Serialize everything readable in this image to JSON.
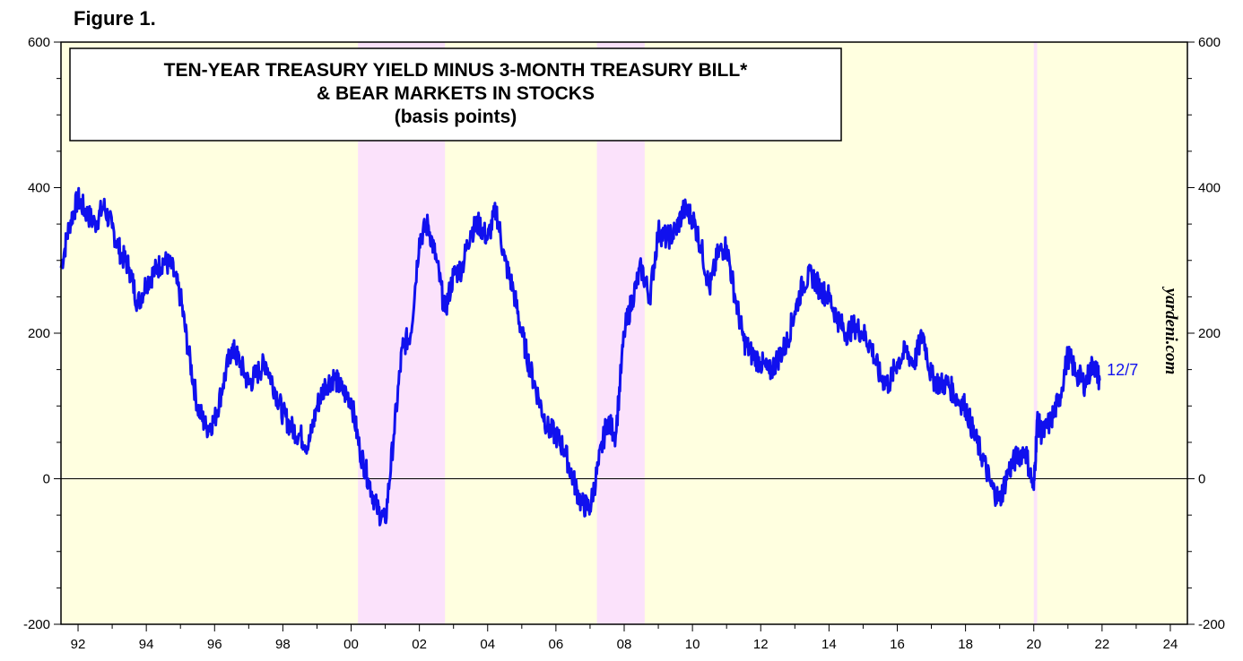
{
  "figure_label": "Figure 1.",
  "chart_data": {
    "type": "line",
    "title_lines": [
      "TEN-YEAR TREASURY YIELD MINUS 3-MONTH TREASURY BILL*",
      "& BEAR MARKETS IN STOCKS",
      "(basis points)"
    ],
    "watermark": "yardeni.com",
    "end_label": "12/7",
    "xlim": [
      1991.5,
      2024.5
    ],
    "ylim": [
      -200,
      600
    ],
    "y_ticks": [
      -200,
      0,
      200,
      400,
      600
    ],
    "y_tick_labels": [
      "-200",
      "0",
      "200",
      "400",
      "600"
    ],
    "x_major_ticks": [
      1992,
      1994,
      1996,
      1998,
      2000,
      2002,
      2004,
      2006,
      2008,
      2010,
      2012,
      2014,
      2016,
      2018,
      2020,
      2022,
      2024
    ],
    "x_tick_labels": [
      "92",
      "94",
      "96",
      "98",
      "00",
      "02",
      "04",
      "06",
      "08",
      "10",
      "12",
      "14",
      "16",
      "18",
      "20",
      "22",
      "24"
    ],
    "bear_markets": [
      {
        "start": 2000.2,
        "end": 2002.75
      },
      {
        "start": 2007.2,
        "end": 2008.6
      },
      {
        "start": 2020.0,
        "end": 2020.1
      }
    ],
    "colors": {
      "plot_bg": "#ffffe0",
      "bear_shade": "#fbe2fb",
      "line": "#1010ee",
      "axis": "#000000"
    },
    "series": [
      {
        "name": "10-Year Treasury Yield minus 3-Month Treasury Bill",
        "x": [
          1991.5,
          1991.75,
          1992.0,
          1992.25,
          1992.5,
          1992.75,
          1993.0,
          1993.25,
          1993.5,
          1993.75,
          1994.0,
          1994.25,
          1994.5,
          1994.75,
          1995.0,
          1995.25,
          1995.5,
          1995.75,
          1996.0,
          1996.25,
          1996.5,
          1996.75,
          1997.0,
          1997.25,
          1997.5,
          1997.75,
          1998.0,
          1998.25,
          1998.5,
          1998.75,
          1999.0,
          1999.25,
          1999.5,
          1999.75,
          2000.0,
          2000.25,
          2000.5,
          2000.75,
          2001.0,
          2001.25,
          2001.5,
          2001.75,
          2002.0,
          2002.25,
          2002.5,
          2002.75,
          2003.0,
          2003.25,
          2003.5,
          2003.75,
          2004.0,
          2004.25,
          2004.5,
          2004.75,
          2005.0,
          2005.25,
          2005.5,
          2005.75,
          2006.0,
          2006.25,
          2006.5,
          2006.75,
          2007.0,
          2007.25,
          2007.5,
          2007.75,
          2008.0,
          2008.25,
          2008.5,
          2008.75,
          2009.0,
          2009.25,
          2009.5,
          2009.75,
          2010.0,
          2010.25,
          2010.5,
          2010.75,
          2011.0,
          2011.25,
          2011.5,
          2011.75,
          2012.0,
          2012.25,
          2012.5,
          2012.75,
          2013.0,
          2013.25,
          2013.5,
          2013.75,
          2014.0,
          2014.25,
          2014.5,
          2014.75,
          2015.0,
          2015.25,
          2015.5,
          2015.75,
          2016.0,
          2016.25,
          2016.5,
          2016.75,
          2017.0,
          2017.25,
          2017.5,
          2017.75,
          2018.0,
          2018.25,
          2018.5,
          2018.75,
          2019.0,
          2019.25,
          2019.5,
          2019.75,
          2020.0,
          2020.1,
          2020.25,
          2020.5,
          2020.75,
          2021.0,
          2021.25,
          2021.5,
          2021.75,
          2021.93
        ],
        "values": [
          290,
          350,
          385,
          365,
          350,
          375,
          345,
          310,
          290,
          240,
          270,
          285,
          300,
          290,
          250,
          170,
          100,
          70,
          80,
          130,
          180,
          160,
          130,
          145,
          160,
          125,
          90,
          70,
          60,
          45,
          100,
          130,
          140,
          120,
          110,
          40,
          0,
          -40,
          -60,
          60,
          180,
          200,
          330,
          350,
          300,
          230,
          280,
          290,
          340,
          350,
          330,
          370,
          300,
          260,
          200,
          150,
          110,
          70,
          60,
          40,
          0,
          -35,
          -40,
          20,
          80,
          60,
          200,
          250,
          290,
          250,
          340,
          330,
          340,
          370,
          360,
          320,
          260,
          310,
          320,
          250,
          190,
          170,
          160,
          145,
          165,
          185,
          230,
          270,
          280,
          260,
          250,
          220,
          200,
          210,
          200,
          180,
          140,
          130,
          160,
          175,
          160,
          200,
          140,
          130,
          130,
          110,
          100,
          60,
          30,
          -10,
          -30,
          10,
          30,
          40,
          -15,
          80,
          60,
          80,
          110,
          170,
          145,
          130,
          160,
          135
        ]
      }
    ]
  }
}
